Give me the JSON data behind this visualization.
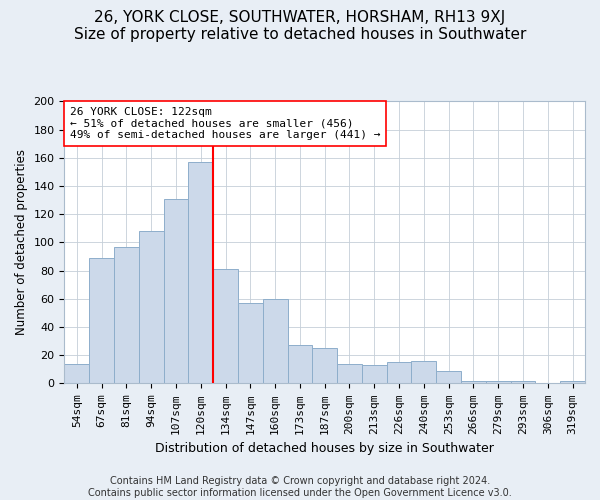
{
  "title": "26, YORK CLOSE, SOUTHWATER, HORSHAM, RH13 9XJ",
  "subtitle": "Size of property relative to detached houses in Southwater",
  "xlabel": "Distribution of detached houses by size in Southwater",
  "ylabel": "Number of detached properties",
  "categories": [
    "54sqm",
    "67sqm",
    "81sqm",
    "94sqm",
    "107sqm",
    "120sqm",
    "134sqm",
    "147sqm",
    "160sqm",
    "173sqm",
    "187sqm",
    "200sqm",
    "213sqm",
    "226sqm",
    "240sqm",
    "253sqm",
    "266sqm",
    "279sqm",
    "293sqm",
    "306sqm",
    "319sqm"
  ],
  "values": [
    14,
    89,
    97,
    108,
    131,
    157,
    81,
    57,
    60,
    27,
    25,
    14,
    13,
    15,
    16,
    9,
    2,
    2,
    2,
    0,
    2
  ],
  "bar_color": "#ccd9ea",
  "bar_edge_color": "#8eaecb",
  "vline_x": 5.5,
  "vline_color": "red",
  "annotation_text": "26 YORK CLOSE: 122sqm\n← 51% of detached houses are smaller (456)\n49% of semi-detached houses are larger (441) →",
  "annotation_box_color": "white",
  "annotation_box_edge_color": "red",
  "footer_text": "Contains HM Land Registry data © Crown copyright and database right 2024.\nContains public sector information licensed under the Open Government Licence v3.0.",
  "ylim": [
    0,
    200
  ],
  "yticks": [
    0,
    20,
    40,
    60,
    80,
    100,
    120,
    140,
    160,
    180,
    200
  ],
  "title_fontsize": 11,
  "subtitle_fontsize": 9.5,
  "xlabel_fontsize": 9,
  "ylabel_fontsize": 8.5,
  "tick_fontsize": 8,
  "annotation_fontsize": 8,
  "footer_fontsize": 7,
  "background_color": "#e8eef5",
  "plot_background_color": "white",
  "grid_color": "#c5cfd8"
}
